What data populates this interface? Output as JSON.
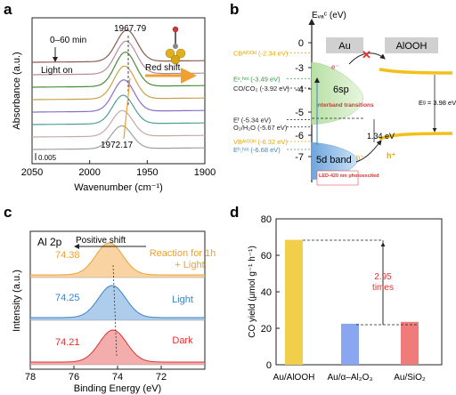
{
  "panels": {
    "a": "a",
    "b": "b",
    "c": "c",
    "d": "d"
  },
  "colors": {
    "orange": "#f0a030",
    "red": "#e03030",
    "green": "#2e9e3e",
    "blue": "#3b82c4",
    "yellow": "#f2cf4a",
    "gray_bar": "#aac4ea"
  },
  "chart_data": [
    {
      "panel": "a",
      "type": "line",
      "xlabel": "Wavenumber (cm⁻¹)",
      "ylabel": "Absorbance (a.u.)",
      "xlim": [
        2050,
        1900
      ],
      "x_ticks": [
        2050,
        2000,
        1950,
        1900
      ],
      "scale_label": "0.005",
      "annotations": {
        "time": "0–60 min",
        "light": "Light on",
        "peak_top": "1967.79",
        "peak_bottom": "1972.17",
        "shift": "Red shift"
      },
      "series": [
        {
          "color": "#8c5a50",
          "offset": 7,
          "peak_x": 1967.79,
          "peak_h": 2.2
        },
        {
          "color": "#b48c9b",
          "offset": 6,
          "peak_x": 1968.4,
          "peak_h": 2.3
        },
        {
          "color": "#4a8d3a",
          "offset": 5,
          "peak_x": 1969.0,
          "peak_h": 2.4
        },
        {
          "color": "#c9a04a",
          "offset": 4,
          "peak_x": 1969.7,
          "peak_h": 2.3
        },
        {
          "color": "#8a6ec8",
          "offset": 3,
          "peak_x": 1970.4,
          "peak_h": 2.2
        },
        {
          "color": "#4f9e96",
          "offset": 2,
          "peak_x": 1971.0,
          "peak_h": 2.0
        },
        {
          "color": "#c9a9a6",
          "offset": 1,
          "peak_x": 1971.6,
          "peak_h": 1.8
        },
        {
          "color": "#9aa0a6",
          "offset": 0,
          "peak_x": 1972.17,
          "peak_h": 1.6
        }
      ]
    },
    {
      "panel": "b",
      "type": "diagram",
      "ylabel": "Eᵥₐᶜ (eV)",
      "y_ticks": [
        "0",
        "-3",
        "-4",
        "-5",
        "-6",
        "-7"
      ],
      "au_label": "Au",
      "alooh_label": "AlOOH",
      "levels": [
        {
          "label": "CBᴬˡᴼᴼᴴ (-2.34 eV)",
          "color": "#e6a800",
          "value": -2.34
        },
        {
          "label": "Eᵉ,ʰᵒᵗ (-3.49 eV)",
          "color": "#2e9e3e",
          "value": -3.49
        },
        {
          "label": "CO/CO₂ (-3.92 eV)",
          "color": "#222222",
          "value": -3.92
        },
        {
          "label": "Eᶠ (-5.34 eV)",
          "color": "#222222",
          "value": -5.34
        },
        {
          "label": "O₂/H₂O (-5.67 eV)",
          "color": "#222222",
          "value": -5.67
        },
        {
          "label": "VBᴬˡᴼᴼᴴ (-6.32 eV)",
          "color": "#e6a800",
          "value": -6.32
        },
        {
          "label": "Eʰ,ʰᵒᵗ (-6.68 eV)",
          "color": "#3b82c4",
          "value": -6.68
        }
      ],
      "sp_label": "6sp",
      "d_label": "5d band",
      "interband": "interband transitions",
      "led": "LED-420 nm photoexcited",
      "gap_label": "1.34 eV",
      "eg_label": "Eᵍ = 3.98 eV",
      "e_label": "e⁻",
      "h_label": "h⁺"
    },
    {
      "panel": "c",
      "type": "line",
      "title": "Al 2p",
      "xlabel": "Binding Energy (eV)",
      "ylabel": "Intensity (a.u.)",
      "xlim": [
        78,
        70
      ],
      "x_ticks": [
        78,
        76,
        74,
        72
      ],
      "shift_label": "Positive shift",
      "series": [
        {
          "name": "Reaction for 1h + Light",
          "peak": 74.38,
          "peak_label": "74.38",
          "color": "#f0a030",
          "fill": "#f6c27a"
        },
        {
          "name": "Light",
          "peak": 74.25,
          "peak_label": "74.25",
          "color": "#3b82c4",
          "fill": "#8cb8e6"
        },
        {
          "name": "Dark",
          "peak": 74.21,
          "peak_label": "74.21",
          "color": "#e03030",
          "fill": "#ef8a8a"
        }
      ]
    },
    {
      "panel": "d",
      "type": "bar",
      "ylabel": "CO yield (μmol g⁻¹ h⁻¹)",
      "ylim": [
        0,
        80
      ],
      "y_ticks": [
        0,
        20,
        40,
        60,
        80
      ],
      "categories": [
        "Au/AlOOH",
        "Au/α–Al₂O₃",
        "Au/SiO₂"
      ],
      "values": [
        68.5,
        22.5,
        23.5
      ],
      "bar_colors": [
        "#f2cf4a",
        "#8aa6f0",
        "#f07b7b"
      ],
      "annotation": [
        "2.95",
        "times"
      ]
    }
  ]
}
